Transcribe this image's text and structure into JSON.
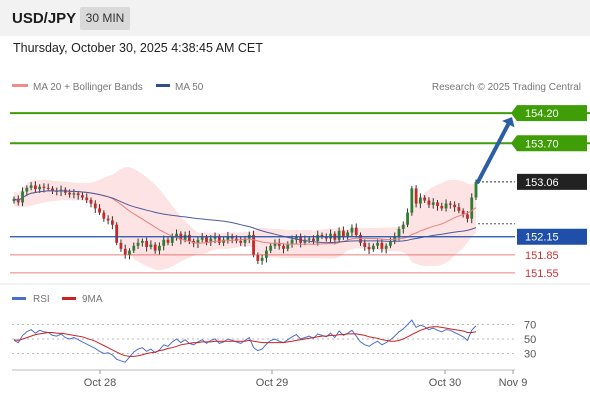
{
  "header": {
    "symbol": "USD/JPY",
    "timeframe": "30 MIN",
    "datetime": "Thursday, October 30, 2025 4:38:45 AM CET"
  },
  "copyright": "Research © 2025 Trading Central",
  "colors": {
    "resistance": "#3f9e08",
    "pivot": "#1f4fa8",
    "support": "#e04a4a",
    "current": "#222222",
    "bollinger_fill": "#fcd9d9",
    "ma20": "#e88080",
    "ma50": "#4a5c9a",
    "candle": "#2e7d32",
    "arrow": "#2b5ea3",
    "rsi": "#4a6fd0",
    "rsi_ma": "#cc2222"
  },
  "chart_data": [
    {
      "type": "candlestick",
      "title": "USD/JPY",
      "legend": [
        {
          "name": "MA 20 + Bollinger Bands",
          "color": "#f28b8b"
        },
        {
          "name": "MA 50",
          "color": "#2f4f8f"
        }
      ],
      "x_ticks": [
        "Oct 28",
        "Oct 29",
        "Oct 30",
        "Nov 9"
      ],
      "ylim": [
        151.35,
        154.5
      ],
      "levels": [
        {
          "label": "154.20",
          "value": 154.2,
          "role": "resistance"
        },
        {
          "label": "153.70",
          "value": 153.7,
          "role": "resistance"
        },
        {
          "label": "153.06",
          "value": 153.06,
          "role": "current"
        },
        {
          "label": "152.15",
          "value": 152.15,
          "role": "pivot"
        },
        {
          "label": "151.85",
          "value": 151.85,
          "role": "support"
        },
        {
          "label": "151.55",
          "value": 151.55,
          "role": "support"
        }
      ],
      "target_arrow": {
        "from": 153.06,
        "to": 154.2
      },
      "close": [
        152.78,
        152.72,
        152.9,
        152.96,
        153.0,
        152.94,
        152.98,
        152.96,
        152.95,
        152.91,
        152.9,
        152.93,
        152.88,
        152.85,
        152.87,
        152.84,
        152.8,
        152.76,
        152.7,
        152.62,
        152.55,
        152.45,
        152.42,
        152.35,
        152.05,
        151.95,
        151.85,
        151.92,
        152.0,
        152.05,
        152.08,
        151.98,
        152.02,
        151.92,
        152.0,
        152.1,
        152.05,
        152.15,
        152.2,
        152.1,
        152.18,
        152.08,
        152.04,
        152.1,
        152.14,
        152.06,
        152.12,
        152.15,
        152.05,
        152.1,
        152.16,
        152.12,
        152.08,
        152.05,
        152.12,
        152.18,
        151.85,
        151.75,
        151.8,
        151.92,
        152.0,
        152.05,
        152.0,
        151.95,
        152.02,
        152.1,
        152.15,
        152.05,
        152.1,
        152.12,
        152.08,
        152.18,
        152.15,
        152.12,
        152.2,
        152.1,
        152.25,
        152.15,
        152.22,
        152.3,
        152.18,
        152.05,
        151.98,
        151.94,
        152.0,
        152.05,
        151.95,
        152.0,
        152.08,
        152.15,
        152.28,
        152.35,
        152.55,
        152.95,
        152.7,
        152.8,
        152.75,
        152.68,
        152.72,
        152.66,
        152.62,
        152.7,
        152.68,
        152.64,
        152.58,
        152.52,
        152.45,
        152.8,
        153.06
      ]
    },
    {
      "type": "line",
      "title": "RSI",
      "legend": [
        {
          "name": "RSI",
          "color": "#4a6fd0"
        },
        {
          "name": "9MA",
          "color": "#cc2222"
        }
      ],
      "y_ticks": [
        "70",
        "50",
        "30"
      ],
      "ylim": [
        10,
        90
      ],
      "rsi": [
        48,
        45,
        55,
        60,
        63,
        58,
        62,
        60,
        59,
        55,
        54,
        57,
        52,
        50,
        52,
        49,
        46,
        43,
        40,
        37,
        33,
        30,
        31,
        28,
        22,
        20,
        18,
        25,
        32,
        36,
        38,
        33,
        36,
        31,
        35,
        42,
        40,
        46,
        50,
        45,
        49,
        44,
        42,
        46,
        49,
        44,
        48,
        50,
        44,
        46,
        50,
        48,
        46,
        44,
        48,
        52,
        38,
        34,
        36,
        43,
        48,
        50,
        47,
        45,
        49,
        53,
        56,
        50,
        52,
        54,
        51,
        57,
        55,
        53,
        58,
        52,
        61,
        55,
        58,
        62,
        54,
        46,
        42,
        40,
        44,
        47,
        42,
        45,
        49,
        54,
        60,
        64,
        70,
        76,
        66,
        69,
        67,
        63,
        65,
        62,
        60,
        63,
        62,
        59,
        56,
        53,
        48,
        62,
        68
      ],
      "ma9": [
        49,
        48,
        50,
        52,
        54,
        56,
        57,
        58,
        59,
        59,
        58,
        58,
        57,
        56,
        55,
        54,
        53,
        51,
        49,
        47,
        44,
        41,
        38,
        35,
        32,
        29,
        27,
        26,
        26,
        27,
        28,
        30,
        31,
        32,
        34,
        35,
        37,
        38,
        40,
        42,
        43,
        44,
        45,
        45,
        46,
        46,
        46,
        47,
        47,
        47,
        47,
        47,
        47,
        47,
        47,
        48,
        47,
        46,
        45,
        45,
        45,
        45,
        45,
        45,
        46,
        47,
        48,
        49,
        50,
        51,
        52,
        53,
        54,
        54,
        55,
        55,
        56,
        56,
        57,
        57,
        57,
        56,
        55,
        53,
        52,
        51,
        49,
        48,
        47,
        47,
        48,
        50,
        53,
        56,
        59,
        62,
        64,
        66,
        67,
        67,
        66,
        65,
        64,
        63,
        62,
        61,
        59,
        59,
        60
      ]
    }
  ]
}
